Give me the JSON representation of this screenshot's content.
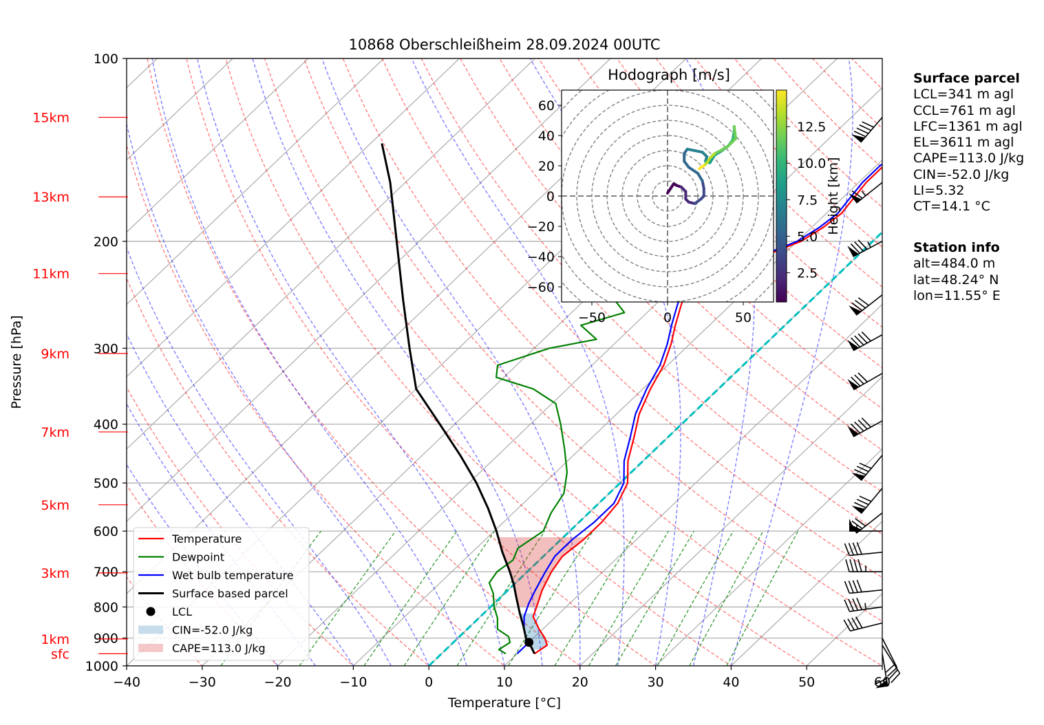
{
  "chart_data": {
    "type": "skewt",
    "title": "10868 Oberschleißheim 28.09.2024 00UTC",
    "xlabel": "Temperature [°C]",
    "ylabel": "Pressure [hPa]",
    "xlim": [
      -40,
      60
    ],
    "ylim": [
      1000,
      100
    ],
    "y_log": true,
    "grid": true,
    "x_ticks": [
      "−40",
      "−30",
      "−20",
      "−10",
      "0",
      "10",
      "20",
      "30",
      "40",
      "50",
      "60"
    ],
    "x_tick_values": [
      -40,
      -30,
      -20,
      -10,
      0,
      10,
      20,
      30,
      40,
      50,
      60
    ],
    "y_ticks": [
      "1000",
      "900",
      "800",
      "700",
      "600",
      "500",
      "400",
      "300",
      "200",
      "100"
    ],
    "y_tick_values": [
      1000,
      900,
      800,
      700,
      600,
      500,
      400,
      300,
      200,
      100
    ],
    "height_labels": [
      {
        "label": "sfc",
        "p": 955
      },
      {
        "label": "1km",
        "p": 903
      },
      {
        "label": "3km",
        "p": 703
      },
      {
        "label": "5km",
        "p": 543
      },
      {
        "label": "7km",
        "p": 412
      },
      {
        "label": "9km",
        "p": 306
      },
      {
        "label": "11km",
        "p": 226
      },
      {
        "label": "13km",
        "p": 169
      },
      {
        "label": "15km",
        "p": 125
      }
    ],
    "series": [
      {
        "name": "Temperature",
        "color": "#ff0000",
        "points": [
          [
            12.3,
            955
          ],
          [
            12.8,
            925
          ],
          [
            11.5,
            900
          ],
          [
            9.5,
            870
          ],
          [
            7.0,
            830
          ],
          [
            5.8,
            790
          ],
          [
            4.5,
            750
          ],
          [
            3.2,
            700
          ],
          [
            2.5,
            660
          ],
          [
            3.0,
            620
          ],
          [
            3.0,
            580
          ],
          [
            2.5,
            540
          ],
          [
            1.0,
            500
          ],
          [
            -2.0,
            460
          ],
          [
            -4.5,
            420
          ],
          [
            -7.0,
            385
          ],
          [
            -9.0,
            350
          ],
          [
            -10.5,
            320
          ],
          [
            -12.5,
            295
          ],
          [
            -14.5,
            275
          ],
          [
            -16.5,
            255
          ],
          [
            -18.5,
            235
          ],
          [
            -19.5,
            225
          ],
          [
            -17.0,
            220
          ],
          [
            -12.0,
            210
          ],
          [
            -9.5,
            200
          ],
          [
            -8.5,
            190
          ],
          [
            -8.0,
            180
          ],
          [
            -8.5,
            170
          ],
          [
            -9.0,
            160
          ],
          [
            -9.0,
            150
          ],
          [
            -7.5,
            140
          ],
          [
            -6.5,
            130
          ],
          [
            -6.0,
            125
          ]
        ]
      },
      {
        "name": "Dewpoint",
        "color": "#008000",
        "points": [
          [
            8.5,
            955
          ],
          [
            7.0,
            940
          ],
          [
            7.5,
            915
          ],
          [
            6.5,
            895
          ],
          [
            4.0,
            870
          ],
          [
            2.5,
            835
          ],
          [
            0.5,
            800
          ],
          [
            -1.5,
            760
          ],
          [
            -3.5,
            730
          ],
          [
            -4.0,
            700
          ],
          [
            -3.5,
            670
          ],
          [
            -4.5,
            640
          ],
          [
            -3.5,
            600
          ],
          [
            -5.0,
            560
          ],
          [
            -6.0,
            520
          ],
          [
            -8.5,
            480
          ],
          [
            -12.0,
            440
          ],
          [
            -16.0,
            400
          ],
          [
            -19.5,
            370
          ],
          [
            -24.5,
            350
          ],
          [
            -31.0,
            335
          ],
          [
            -32.5,
            320
          ],
          [
            -28.0,
            300
          ],
          [
            -23.0,
            290
          ],
          [
            -27.0,
            275
          ],
          [
            -23.0,
            262
          ],
          [
            -26.0,
            250
          ],
          [
            -29.0,
            240
          ],
          [
            -32.5,
            228
          ],
          [
            -36.0,
            218
          ],
          [
            -40.0,
            205
          ],
          [
            -38.5,
            200
          ],
          [
            -39.5,
            190
          ],
          [
            -40.5,
            180
          ],
          [
            -41.0,
            170
          ],
          [
            -41.0,
            160
          ],
          [
            -41.0,
            150
          ],
          [
            -41.5,
            140
          ],
          [
            -41.5,
            130
          ],
          [
            -41.5,
            125
          ]
        ]
      },
      {
        "name": "Wet bulb temperature",
        "color": "#0000ff",
        "points": [
          [
            10.0,
            955
          ],
          [
            10.0,
            925
          ],
          [
            9.0,
            900
          ],
          [
            7.5,
            870
          ],
          [
            5.8,
            830
          ],
          [
            4.6,
            790
          ],
          [
            3.6,
            750
          ],
          [
            2.4,
            700
          ],
          [
            1.5,
            660
          ],
          [
            1.5,
            620
          ],
          [
            2.0,
            580
          ],
          [
            2.0,
            540
          ],
          [
            0.5,
            500
          ],
          [
            -2.5,
            460
          ],
          [
            -5.0,
            420
          ],
          [
            -7.5,
            385
          ],
          [
            -9.5,
            350
          ],
          [
            -11.0,
            320
          ],
          [
            -13.0,
            295
          ],
          [
            -15.0,
            275
          ],
          [
            -17.0,
            255
          ],
          [
            -19.0,
            235
          ],
          [
            -19.8,
            225
          ],
          [
            -17.3,
            220
          ],
          [
            -12.5,
            210
          ],
          [
            -10.0,
            200
          ],
          [
            -9.0,
            190
          ],
          [
            -8.5,
            180
          ],
          [
            -9.0,
            170
          ],
          [
            -9.5,
            160
          ],
          [
            -9.5,
            150
          ],
          [
            -8.0,
            140
          ],
          [
            -7.0,
            130
          ],
          [
            -6.5,
            125
          ]
        ]
      },
      {
        "name": "Surface based parcel",
        "color": "#000000",
        "points": [
          [
            12.3,
            955
          ],
          [
            10.0,
            915
          ],
          [
            9.0,
            900
          ],
          [
            7.0,
            860
          ],
          [
            4.8,
            820
          ],
          [
            2.3,
            775
          ],
          [
            0.0,
            735
          ],
          [
            -2.3,
            700
          ],
          [
            -6.0,
            650
          ],
          [
            -9.7,
            600
          ],
          [
            -14.0,
            550
          ],
          [
            -19.0,
            500
          ],
          [
            -25.0,
            450
          ],
          [
            -32.0,
            400
          ],
          [
            -40.0,
            350
          ],
          [
            -46.5,
            300
          ],
          [
            -54.0,
            250
          ],
          [
            -63.0,
            200
          ],
          [
            -72.0,
            160
          ],
          [
            -78.5,
            138
          ]
        ]
      }
    ],
    "lcl": {
      "label": "LCL",
      "t": 10.0,
      "p": 915
    },
    "cin_label": "CIN=-52.0 J/kg",
    "cape_label": "CAPE=113.0 J/kg",
    "legend": {
      "placement": "lower-left",
      "entries": [
        "Temperature",
        "Dewpoint",
        "Wet bulb temperature",
        "Surface based parcel",
        "LCL",
        "CIN=-52.0 J/kg",
        "CAPE=113.0 J/kg"
      ]
    },
    "wind_barbs": [
      {
        "p": 955,
        "u": -5,
        "v": 30
      },
      {
        "p": 925,
        "u": -5,
        "v": 8
      },
      {
        "p": 900,
        "u": -5,
        "v": 10
      },
      {
        "p": 850,
        "u": 20,
        "v": 5
      },
      {
        "p": 800,
        "u": 22,
        "v": 3
      },
      {
        "p": 750,
        "u": 20,
        "v": 2
      },
      {
        "p": 700,
        "u": 23,
        "v": 0
      },
      {
        "p": 650,
        "u": 20,
        "v": 2
      },
      {
        "p": 600,
        "u": 28,
        "v": 0
      },
      {
        "p": 560,
        "u": 28,
        "v": 22
      },
      {
        "p": 510,
        "u": 25,
        "v": 30
      },
      {
        "p": 450,
        "u": 25,
        "v": 30
      },
      {
        "p": 395,
        "u": 40,
        "v": 22
      },
      {
        "p": 330,
        "u": 35,
        "v": 20
      },
      {
        "p": 285,
        "u": 40,
        "v": 22
      },
      {
        "p": 245,
        "u": 32,
        "v": 25
      },
      {
        "p": 200,
        "u": 38,
        "v": 20
      },
      {
        "p": 160,
        "u": 25,
        "v": 20
      },
      {
        "p": 125,
        "u": 30,
        "v": 35
      }
    ],
    "hodograph": {
      "title": "Hodograph [m/s]",
      "xlim": [
        -70,
        70
      ],
      "ylim": [
        -70,
        70
      ],
      "x_ticks": [
        "−50",
        "0",
        "50"
      ],
      "x_tick_values": [
        -50,
        0,
        50
      ],
      "y_ticks": [
        "60",
        "40",
        "20",
        "0",
        "−20",
        "−40",
        "−60"
      ],
      "y_tick_values": [
        60,
        40,
        20,
        0,
        -20,
        -40,
        -60
      ],
      "rings": [
        10,
        20,
        30,
        40,
        50,
        60,
        70,
        80,
        90,
        100
      ],
      "colorbar_label": "Height [km]",
      "colorbar_ticks": [
        "2.5",
        "5.0",
        "7.5",
        "10.0",
        "12.5"
      ],
      "colorbar_tick_values": [
        2.5,
        5.0,
        7.5,
        10.0,
        12.5
      ],
      "height_range": [
        0.5,
        15
      ],
      "points": [
        [
          0,
          2,
          0.5
        ],
        [
          2,
          5,
          0.8
        ],
        [
          4,
          8,
          1.1
        ],
        [
          6,
          7,
          1.5
        ],
        [
          9,
          6,
          2.0
        ],
        [
          12,
          3,
          2.5
        ],
        [
          12,
          -2,
          3.0
        ],
        [
          14,
          -4,
          3.3
        ],
        [
          18,
          -5,
          3.7
        ],
        [
          22,
          -2,
          4.0
        ],
        [
          24,
          0,
          4.3
        ],
        [
          24,
          5,
          4.6
        ],
        [
          23,
          10,
          5.0
        ],
        [
          20,
          15,
          5.3
        ],
        [
          14,
          19,
          5.6
        ],
        [
          11,
          23,
          5.8
        ],
        [
          11,
          28,
          6.1
        ],
        [
          13,
          31,
          6.4
        ],
        [
          18,
          30,
          6.8
        ],
        [
          23,
          29,
          7.2
        ],
        [
          26,
          26,
          7.6
        ],
        [
          25,
          23,
          8.0
        ],
        [
          28,
          22,
          8.4
        ],
        [
          31,
          27,
          8.8
        ],
        [
          36,
          30,
          9.2
        ],
        [
          40,
          33,
          9.6
        ],
        [
          43,
          37,
          10.0
        ],
        [
          44,
          43,
          10.4
        ],
        [
          44,
          46,
          10.8
        ],
        [
          45,
          38,
          11.2
        ],
        [
          40,
          33,
          11.6
        ],
        [
          35,
          30,
          12.0
        ],
        [
          31,
          28,
          12.4
        ],
        [
          28,
          25,
          12.8
        ],
        [
          26,
          22,
          13.2
        ],
        [
          24,
          20,
          13.6
        ],
        [
          22,
          19,
          14.0
        ],
        [
          21,
          18,
          14.4
        ]
      ]
    }
  },
  "surface_parcel": {
    "heading": "Surface parcel",
    "lines": [
      "LCL=341 m agl",
      "CCL=761 m agl",
      "LFC=1361 m agl",
      "EL=3611 m agl",
      "CAPE=113.0 J/kg",
      "CIN=-52.0 J/kg",
      "LI=5.32",
      "CT=14.1 °C"
    ]
  },
  "station_info": {
    "heading": "Station info",
    "lines": [
      "alt=484.0 m",
      "lat=48.24° N",
      "lon=11.55° E"
    ]
  }
}
